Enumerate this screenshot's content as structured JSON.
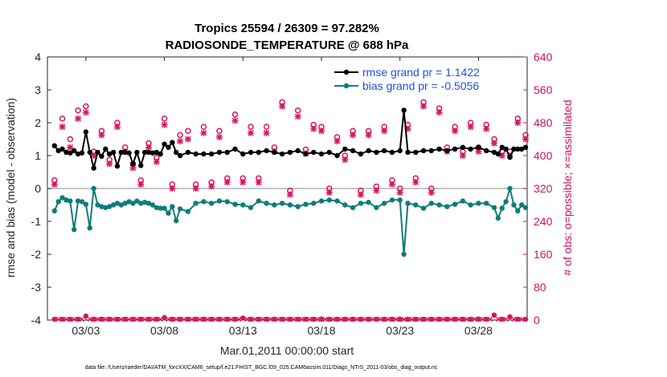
{
  "chart_data": {
    "type": "line",
    "title_line1": "Tropics 25594 / 26309 = 97.282%",
    "title_line2": "RADIOSONDE_TEMPERATURE @ 688 hPa",
    "ylabel": "rmse and bias (model - observation)",
    "y2label": "# of obs: o=possible; ×=assimilated",
    "xlabel": "Mar.01,2011 00:00:00 start",
    "footnote": "data file: /Users/raeder/DAI/ATM_forcXX/CAM6_setup/f.e21.FHIST_BGC.f09_025.CAM6assim.011/Diags_NTrS_2011-03/obs_diag_output.nc",
    "ylim": [
      -4,
      4
    ],
    "y2lim": [
      0,
      640
    ],
    "xlim": [
      0.55,
      31.1
    ],
    "yticks": [
      "-4",
      "-3",
      "-2",
      "-1",
      "0",
      "1",
      "2",
      "3",
      "4"
    ],
    "y2ticks": [
      "0",
      "80",
      "160",
      "240",
      "320",
      "400",
      "480",
      "560",
      "640"
    ],
    "xtick_positions": [
      3,
      8,
      13,
      18,
      23,
      28
    ],
    "xtick_labels": [
      "03/03",
      "03/08",
      "03/13",
      "03/18",
      "03/23",
      "03/28"
    ],
    "legend": {
      "rmse": "rmse grand pr = 1.1422",
      "bias": "bias grand pr = -0.5056",
      "placement": "top-right"
    },
    "colors": {
      "rmse": "#000000",
      "bias": "#0e7c7b",
      "obs": "#d6165e",
      "zero_line": "#b3b3b3",
      "legend_text": "#1f4fe0",
      "axis": "#262626"
    },
    "series": [
      {
        "name": "rmse",
        "x": [
          1.0,
          1.25,
          1.5,
          1.75,
          2.0,
          2.25,
          2.5,
          2.75,
          3.0,
          3.25,
          3.5,
          3.75,
          4.0,
          4.25,
          4.5,
          4.75,
          5.0,
          5.25,
          5.5,
          5.75,
          6.0,
          6.25,
          6.5,
          6.75,
          7.0,
          7.25,
          7.5,
          7.75,
          8.0,
          8.25,
          8.5,
          8.75,
          9.0,
          9.5,
          10.0,
          10.5,
          11.0,
          11.5,
          12.0,
          12.5,
          13.0,
          13.5,
          14.0,
          14.5,
          15.0,
          15.5,
          16.0,
          16.5,
          17.0,
          17.5,
          18.0,
          18.5,
          19.0,
          19.5,
          20.0,
          20.5,
          21.0,
          21.5,
          22.0,
          22.5,
          23.0,
          23.25,
          23.5,
          24.0,
          24.5,
          25.0,
          25.5,
          26.0,
          26.5,
          27.0,
          27.5,
          28.0,
          28.5,
          29.0,
          29.25,
          29.5,
          29.75,
          30.0,
          30.25,
          30.5,
          30.75,
          31.0
        ],
        "values": [
          1.3,
          1.15,
          1.2,
          1.1,
          1.08,
          1.15,
          1.05,
          1.08,
          1.72,
          1.1,
          0.62,
          1.1,
          0.98,
          1.2,
          1.05,
          1.1,
          0.68,
          1.1,
          1.1,
          1.08,
          0.75,
          1.1,
          0.7,
          1.1,
          1.1,
          1.08,
          1.1,
          1.05,
          1.35,
          1.25,
          1.4,
          1.1,
          1.0,
          1.1,
          1.05,
          1.05,
          1.05,
          1.1,
          1.1,
          1.2,
          1.05,
          1.1,
          1.1,
          1.15,
          1.1,
          1.05,
          1.1,
          1.15,
          1.05,
          1.1,
          1.05,
          1.1,
          1.0,
          1.2,
          1.15,
          1.05,
          1.15,
          1.1,
          1.15,
          1.1,
          1.15,
          2.38,
          1.1,
          1.1,
          1.15,
          1.15,
          1.2,
          1.15,
          1.2,
          1.25,
          1.2,
          1.25,
          1.15,
          1.1,
          1.05,
          1.25,
          1.2,
          0.95,
          1.2,
          1.2,
          1.2,
          1.25
        ]
      },
      {
        "name": "bias",
        "x": [
          1.0,
          1.25,
          1.5,
          1.75,
          2.0,
          2.25,
          2.5,
          2.75,
          3.0,
          3.25,
          3.5,
          3.75,
          4.0,
          4.25,
          4.5,
          4.75,
          5.0,
          5.25,
          5.5,
          5.75,
          6.0,
          6.25,
          6.5,
          6.75,
          7.0,
          7.25,
          7.5,
          7.75,
          8.0,
          8.25,
          8.5,
          8.75,
          9.0,
          9.5,
          10.0,
          10.5,
          11.0,
          11.5,
          12.0,
          12.5,
          13.0,
          13.5,
          14.0,
          14.5,
          15.0,
          15.5,
          16.0,
          16.5,
          17.0,
          17.5,
          18.0,
          18.5,
          19.0,
          19.5,
          20.0,
          20.5,
          21.0,
          21.5,
          22.0,
          22.5,
          23.0,
          23.25,
          23.5,
          24.0,
          24.5,
          25.0,
          25.5,
          26.0,
          26.5,
          27.0,
          27.5,
          28.0,
          28.5,
          29.0,
          29.25,
          29.5,
          29.75,
          30.0,
          30.25,
          30.5,
          30.75,
          31.0
        ],
        "values": [
          -0.68,
          -0.4,
          -0.28,
          -0.35,
          -0.38,
          -1.25,
          -0.38,
          -0.4,
          -0.48,
          -1.2,
          0.0,
          -0.5,
          -0.55,
          -0.58,
          -0.55,
          -0.5,
          -0.45,
          -0.5,
          -0.45,
          -0.4,
          -0.45,
          -0.38,
          -0.45,
          -0.42,
          -0.45,
          -0.5,
          -0.58,
          -0.6,
          -0.6,
          -0.75,
          -0.55,
          -0.98,
          -0.62,
          -0.7,
          -0.45,
          -0.4,
          -0.45,
          -0.38,
          -0.4,
          -0.48,
          -0.5,
          -0.58,
          -0.38,
          -0.45,
          -0.5,
          -0.45,
          -0.5,
          -0.55,
          -0.48,
          -0.45,
          -0.38,
          -0.35,
          -0.38,
          -0.5,
          -0.58,
          -0.45,
          -0.42,
          -0.58,
          -0.45,
          -0.35,
          -0.35,
          -2.0,
          -0.45,
          -0.5,
          -0.6,
          -0.45,
          -0.5,
          -0.55,
          -0.48,
          -0.38,
          -0.5,
          -0.45,
          -0.45,
          -0.58,
          -0.9,
          -0.6,
          -0.4,
          0.0,
          -0.5,
          -0.68,
          -0.5,
          -0.58
        ]
      },
      {
        "name": "obs possible (o)",
        "x": [
          1.0,
          1.5,
          2.0,
          2.5,
          3.0,
          3.5,
          4.0,
          4.5,
          5.0,
          5.5,
          6.0,
          6.5,
          7.0,
          7.5,
          8.0,
          8.5,
          9.0,
          9.5,
          10.0,
          10.5,
          11.0,
          11.5,
          12.0,
          12.5,
          13.0,
          13.5,
          14.0,
          14.5,
          15.0,
          15.5,
          16.0,
          16.5,
          17.0,
          17.5,
          18.0,
          18.5,
          19.0,
          19.5,
          20.0,
          20.5,
          21.0,
          21.5,
          22.0,
          22.5,
          23.0,
          23.5,
          24.0,
          24.5,
          25.0,
          25.5,
          26.0,
          26.5,
          27.0,
          27.5,
          28.0,
          28.5,
          29.0,
          29.5,
          30.0,
          30.5,
          31.0
        ],
        "values": [
          340,
          490,
          440,
          510,
          520,
          410,
          460,
          390,
          480,
          420,
          380,
          340,
          430,
          395,
          490,
          330,
          450,
          460,
          330,
          470,
          335,
          460,
          345,
          500,
          345,
          470,
          345,
          470,
          420,
          530,
          315,
          510,
          415,
          475,
          470,
          320,
          445,
          400,
          460,
          315,
          460,
          325,
          470,
          340,
          320,
          475,
          345,
          530,
          320,
          515,
          420,
          470,
          410,
          480,
          420,
          475,
          440,
          410,
          410,
          490,
          450
        ]
      },
      {
        "name": "obs assimilated (×)",
        "x": [
          1.0,
          1.5,
          2.0,
          2.5,
          3.0,
          3.5,
          4.0,
          4.5,
          5.0,
          5.5,
          6.0,
          6.5,
          7.0,
          7.5,
          8.0,
          8.5,
          9.0,
          9.5,
          10.0,
          10.5,
          11.0,
          11.5,
          12.0,
          12.5,
          13.0,
          13.5,
          14.0,
          14.5,
          15.0,
          15.5,
          16.0,
          16.5,
          17.0,
          17.5,
          18.0,
          18.5,
          19.0,
          19.5,
          20.0,
          20.5,
          21.0,
          21.5,
          22.0,
          22.5,
          23.0,
          23.5,
          24.0,
          24.5,
          25.0,
          25.5,
          26.0,
          26.5,
          27.0,
          27.5,
          28.0,
          28.5,
          29.0,
          29.5,
          30.0,
          30.5,
          31.0
        ],
        "values": [
          330,
          470,
          420,
          490,
          505,
          400,
          450,
          380,
          470,
          410,
          370,
          330,
          420,
          385,
          475,
          320,
          435,
          440,
          320,
          455,
          325,
          445,
          335,
          485,
          335,
          455,
          335,
          455,
          410,
          520,
          305,
          495,
          405,
          465,
          460,
          310,
          435,
          390,
          450,
          305,
          450,
          315,
          460,
          330,
          310,
          465,
          335,
          520,
          310,
          505,
          410,
          460,
          400,
          470,
          410,
          465,
          430,
          400,
          400,
          480,
          440
        ]
      },
      {
        "name": "obs rejected (baseline)",
        "x": [
          1.0,
          1.5,
          2.0,
          2.5,
          3.0,
          3.5,
          4.0,
          4.5,
          5.0,
          5.5,
          6.0,
          6.5,
          7.0,
          7.5,
          8.0,
          8.5,
          9.0,
          9.5,
          10.0,
          10.5,
          11.0,
          11.5,
          12.0,
          12.5,
          13.0,
          13.5,
          14.0,
          14.5,
          15.0,
          15.5,
          16.0,
          16.5,
          17.0,
          17.5,
          18.0,
          18.5,
          19.0,
          19.5,
          20.0,
          20.5,
          21.0,
          21.5,
          22.0,
          22.5,
          23.0,
          23.5,
          24.0,
          24.5,
          25.0,
          25.5,
          26.0,
          26.5,
          27.0,
          27.5,
          28.0,
          28.5,
          29.0,
          29.5,
          30.0,
          30.5,
          31.0
        ],
        "values": [
          0,
          0,
          0,
          0,
          8,
          0,
          0,
          0,
          0,
          0,
          0,
          0,
          0,
          0,
          4,
          0,
          0,
          0,
          0,
          0,
          0,
          0,
          0,
          0,
          3,
          0,
          0,
          0,
          0,
          0,
          0,
          0,
          0,
          0,
          0,
          0,
          0,
          0,
          0,
          0,
          0,
          0,
          0,
          0,
          0,
          0,
          0,
          0,
          0,
          0,
          0,
          0,
          0,
          0,
          0,
          0,
          10,
          0,
          6,
          0,
          0
        ]
      }
    ]
  }
}
